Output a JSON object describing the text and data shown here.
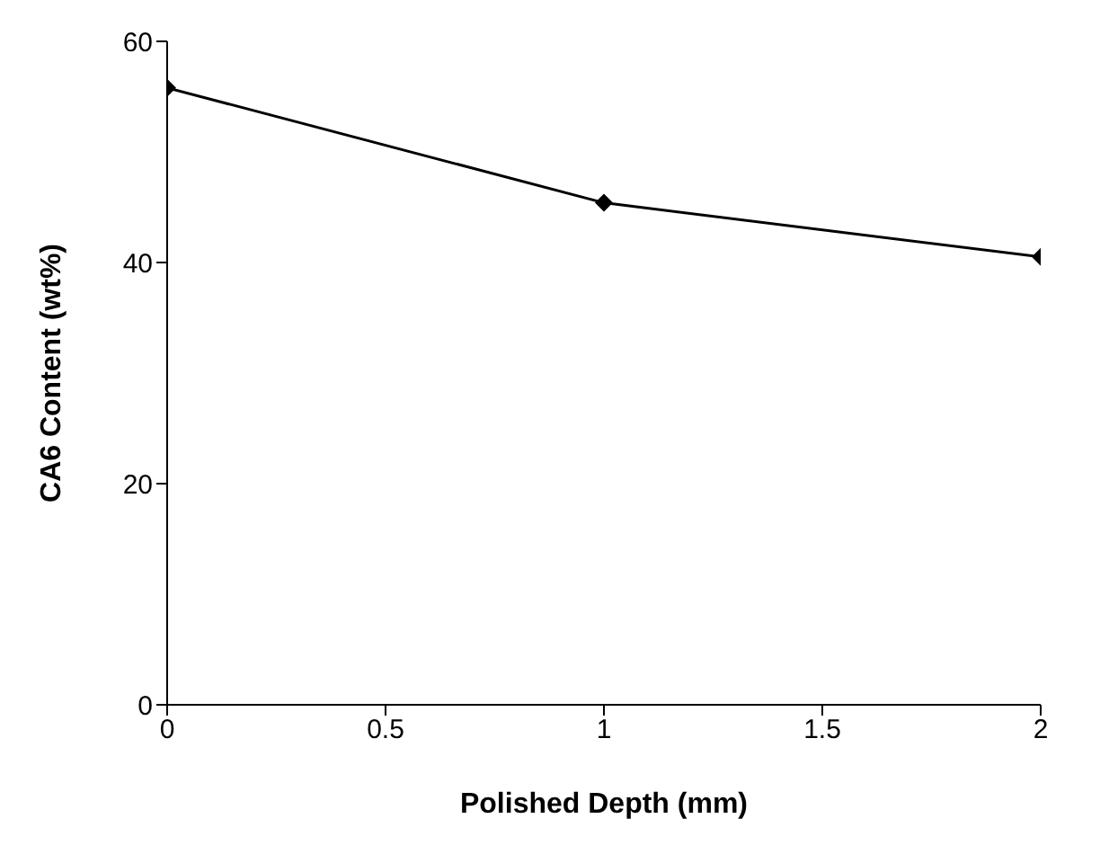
{
  "chart_data": {
    "type": "line",
    "xlabel": "Polished Depth (mm)",
    "ylabel": "CA6 Content (wt%)",
    "x": [
      0,
      1,
      2
    ],
    "series": [
      {
        "color": "#000000",
        "values": [
          55.8,
          45.4,
          40.5
        ]
      }
    ],
    "xlim": [
      0,
      2
    ],
    "xticks": [
      0,
      0.5,
      1,
      1.5,
      2
    ],
    "ylim": [
      0,
      60
    ],
    "yticks": [
      0,
      20,
      40,
      60
    ],
    "grid": false,
    "legend": false,
    "marker": "diamond",
    "line_style": "solid"
  }
}
